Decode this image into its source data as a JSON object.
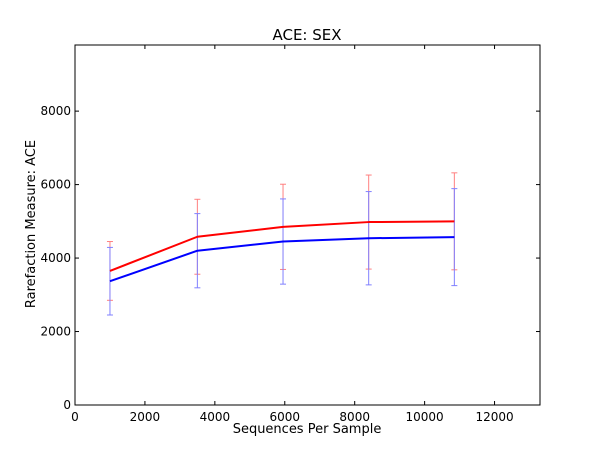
{
  "chart_data": {
    "type": "line",
    "title": "ACE: SEX",
    "xlabel": "Sequences Per Sample",
    "ylabel": "Rarefaction Measure: ACE",
    "xlim": [
      0,
      13300
    ],
    "ylim": [
      0,
      9800
    ],
    "x_ticks": [
      0,
      2000,
      4000,
      6000,
      8000,
      10000,
      12000
    ],
    "y_ticks": [
      0,
      2000,
      4000,
      6000,
      8000
    ],
    "grid": false,
    "legend": "none",
    "x": [
      1000,
      3500,
      5950,
      8400,
      10850
    ],
    "series": [
      {
        "color": "#ff0000",
        "errorbar_color": "#ff8080",
        "values": [
          3650,
          4580,
          4850,
          4980,
          5000
        ],
        "error": [
          800,
          1020,
          1160,
          1280,
          1320
        ]
      },
      {
        "color": "#0000ff",
        "errorbar_color": "#8080ff",
        "values": [
          3370,
          4200,
          4450,
          4540,
          4570
        ],
        "error": [
          920,
          1010,
          1160,
          1270,
          1320
        ]
      }
    ]
  }
}
